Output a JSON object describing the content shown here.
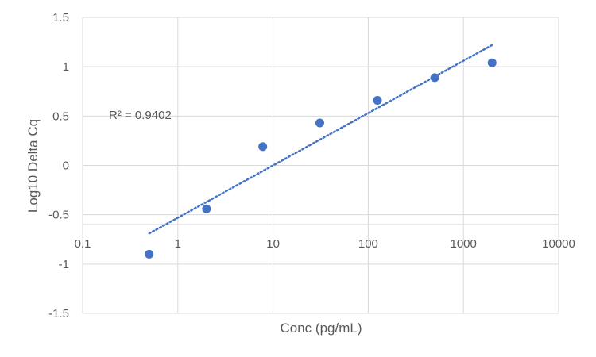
{
  "chart_data": {
    "type": "scatter",
    "title": "",
    "xlabel": "Conc (pg/mL)",
    "ylabel": "Log10 Delta Cq",
    "x_scale": "log",
    "xlim": [
      0.1,
      10000
    ],
    "ylim": [
      -1.5,
      1.5
    ],
    "x_ticks": [
      0.1,
      1,
      10,
      100,
      1000,
      10000
    ],
    "x_tick_labels": [
      "0.1",
      "1",
      "10",
      "100",
      "1000",
      "10000"
    ],
    "y_ticks": [
      1.5,
      1,
      0.5,
      0,
      -0.5,
      -1,
      -1.5
    ],
    "y_tick_labels": [
      "1.5",
      "1",
      "0.5",
      "0",
      "-0.5",
      "-1",
      "-1.5"
    ],
    "grid": true,
    "legend": "none",
    "series": [
      {
        "x": [
          0.5,
          2,
          7.8,
          31,
          125,
          500,
          2000
        ],
        "y": [
          -0.9,
          -0.44,
          0.19,
          0.43,
          0.66,
          0.89,
          1.04
        ],
        "color": "#4472C4"
      }
    ],
    "trendline": {
      "kind": "log-linear",
      "x_range": [
        0.5,
        2000
      ],
      "y_range": [
        -0.69,
        1.22
      ],
      "style": "dotted",
      "color": "#4472C4"
    },
    "annotations": [
      {
        "text": "R² = 0.9402"
      }
    ]
  }
}
